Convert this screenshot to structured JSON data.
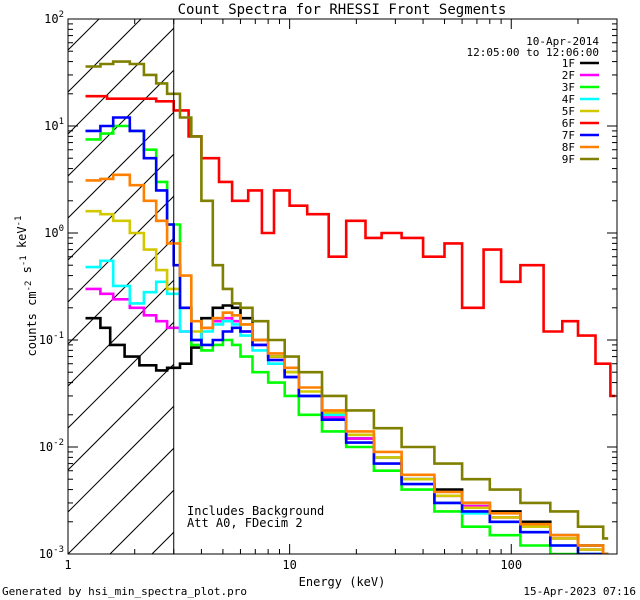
{
  "chart_data": {
    "type": "line",
    "title": "Count Spectra for RHESSI Front Segments",
    "xlabel": "Energy (keV)",
    "ylabel": "counts cm-2 s-1 keV-1",
    "xscale": "log",
    "yscale": "log",
    "xlim": [
      1,
      300
    ],
    "ylim": [
      0.001,
      100
    ],
    "x_tick_labels": [
      "1",
      "10",
      "100"
    ],
    "y_tick_labels": [
      "10-3",
      "10-2",
      "10-1",
      "100",
      "101",
      "102"
    ],
    "shaded_region": {
      "x_from": 1,
      "x_to": 3,
      "pattern": "diagonal-hatch"
    },
    "legend": {
      "date": "10-Apr-2014",
      "time_range": "12:05:00 to 12:06:00",
      "position": "top-right"
    },
    "annotation": [
      "Includes Background",
      "Att A0, FDecim 2"
    ],
    "series": [
      {
        "name": "1F",
        "color": "#000000",
        "x": [
          1.2,
          1.4,
          1.55,
          1.8,
          2.1,
          2.5,
          2.8,
          3.2,
          3.6,
          4.0,
          4.5,
          5.0,
          5.5,
          6.0,
          6.8,
          8.0,
          9.5,
          11,
          14,
          18,
          24,
          32,
          45,
          60,
          80,
          110,
          150,
          200,
          260
        ],
        "y": [
          0.16,
          0.13,
          0.09,
          0.07,
          0.058,
          0.052,
          0.055,
          0.06,
          0.085,
          0.16,
          0.2,
          0.21,
          0.2,
          0.16,
          0.1,
          0.07,
          0.05,
          0.03,
          0.02,
          0.012,
          0.008,
          0.005,
          0.004,
          0.003,
          0.0025,
          0.002,
          0.0015,
          0.0012,
          0.001
        ]
      },
      {
        "name": "2F",
        "color": "#ff00ff",
        "x": [
          1.2,
          1.4,
          1.6,
          1.9,
          2.2,
          2.5,
          2.8,
          3.2,
          3.6,
          4.0,
          4.5,
          5.0,
          5.5,
          6.0,
          6.8,
          8.0,
          9.5,
          11,
          14,
          18,
          24,
          32,
          45,
          60,
          80,
          110,
          150,
          200,
          260
        ],
        "y": [
          0.3,
          0.27,
          0.24,
          0.2,
          0.17,
          0.15,
          0.13,
          0.12,
          0.1,
          0.13,
          0.15,
          0.16,
          0.15,
          0.12,
          0.09,
          0.065,
          0.045,
          0.03,
          0.019,
          0.012,
          0.008,
          0.005,
          0.0035,
          0.0028,
          0.0022,
          0.0018,
          0.0014,
          0.0011,
          0.001
        ]
      },
      {
        "name": "3F",
        "color": "#00ff00",
        "x": [
          1.2,
          1.4,
          1.6,
          1.9,
          2.2,
          2.5,
          2.8,
          3.2,
          3.6,
          4.0,
          4.5,
          5.0,
          5.5,
          6.0,
          6.8,
          8.0,
          9.5,
          11,
          14,
          18,
          24,
          32,
          45,
          60,
          80,
          110,
          150,
          200,
          260
        ],
        "y": [
          7.5,
          8.5,
          10,
          9,
          6,
          3,
          1.2,
          0.2,
          0.09,
          0.08,
          0.09,
          0.1,
          0.09,
          0.07,
          0.05,
          0.04,
          0.03,
          0.02,
          0.014,
          0.01,
          0.006,
          0.004,
          0.0025,
          0.0018,
          0.0015,
          0.0012,
          0.001,
          0.001,
          0.001
        ]
      },
      {
        "name": "4F",
        "color": "#00ffff",
        "x": [
          1.2,
          1.4,
          1.6,
          1.9,
          2.2,
          2.5,
          2.8,
          3.2,
          3.6,
          4.0,
          4.5,
          5.0,
          5.5,
          6.0,
          6.8,
          8.0,
          9.5,
          11,
          14,
          18,
          24,
          32,
          45,
          60,
          80,
          110,
          150,
          200,
          260
        ],
        "y": [
          0.48,
          0.55,
          0.32,
          0.22,
          0.28,
          0.35,
          0.27,
          0.12,
          0.1,
          0.12,
          0.14,
          0.15,
          0.14,
          0.11,
          0.08,
          0.06,
          0.045,
          0.03,
          0.02,
          0.013,
          0.008,
          0.005,
          0.003,
          0.0024,
          0.002,
          0.0016,
          0.0012,
          0.001,
          0.001
        ]
      },
      {
        "name": "5F",
        "color": "#d2c800",
        "x": [
          1.2,
          1.4,
          1.6,
          1.9,
          2.2,
          2.5,
          2.8,
          3.2,
          3.6,
          4.0,
          4.5,
          5.0,
          5.5,
          6.0,
          6.8,
          8.0,
          9.5,
          11,
          14,
          18,
          24,
          32,
          45,
          60,
          80,
          110,
          150,
          200,
          260
        ],
        "y": [
          1.6,
          1.5,
          1.3,
          1.0,
          0.7,
          0.45,
          0.3,
          0.2,
          0.12,
          0.13,
          0.16,
          0.18,
          0.17,
          0.14,
          0.1,
          0.07,
          0.05,
          0.033,
          0.021,
          0.013,
          0.008,
          0.005,
          0.0035,
          0.0027,
          0.0022,
          0.0018,
          0.0014,
          0.0011,
          0.001
        ]
      },
      {
        "name": "6F",
        "color": "#ff0000",
        "x": [
          1.2,
          1.5,
          1.9,
          2.5,
          3.0,
          3.5,
          4.0,
          4.8,
          5.5,
          6.5,
          7.5,
          8.5,
          10,
          12,
          15,
          18,
          22,
          26,
          32,
          40,
          50,
          60,
          75,
          90,
          110,
          140,
          170,
          200,
          240,
          280
        ],
        "y": [
          19,
          18,
          18,
          17,
          14,
          8,
          5,
          3,
          2.0,
          2.5,
          1.0,
          2.5,
          1.8,
          1.5,
          0.6,
          1.3,
          0.9,
          1.0,
          0.9,
          0.6,
          0.8,
          0.2,
          0.7,
          0.35,
          0.5,
          0.12,
          0.15,
          0.11,
          0.06,
          0.03
        ]
      },
      {
        "name": "7F",
        "color": "#0000ff",
        "x": [
          1.2,
          1.4,
          1.6,
          1.9,
          2.2,
          2.5,
          2.8,
          3.0,
          3.2,
          3.6,
          4.0,
          4.5,
          5.0,
          5.5,
          6.0,
          6.8,
          8.0,
          9.5,
          11,
          14,
          18,
          24,
          32,
          45,
          60,
          80,
          110,
          150,
          200,
          260
        ],
        "y": [
          9,
          10,
          12,
          9,
          5,
          2.5,
          1.2,
          0.5,
          0.2,
          0.1,
          0.09,
          0.1,
          0.12,
          0.13,
          0.12,
          0.09,
          0.065,
          0.045,
          0.03,
          0.018,
          0.011,
          0.007,
          0.0045,
          0.003,
          0.0025,
          0.002,
          0.0016,
          0.0012,
          0.001,
          0.001
        ]
      },
      {
        "name": "8F",
        "color": "#ff8000",
        "x": [
          1.2,
          1.4,
          1.6,
          1.9,
          2.2,
          2.5,
          2.8,
          3.2,
          3.6,
          4.0,
          4.5,
          5.0,
          5.5,
          6.0,
          6.8,
          8.0,
          9.5,
          11,
          14,
          18,
          24,
          32,
          45,
          60,
          80,
          110,
          150,
          200,
          260
        ],
        "y": [
          3.1,
          3.2,
          3.5,
          2.8,
          2.0,
          1.3,
          0.8,
          0.4,
          0.15,
          0.13,
          0.16,
          0.18,
          0.17,
          0.14,
          0.1,
          0.075,
          0.055,
          0.036,
          0.022,
          0.014,
          0.009,
          0.0055,
          0.0038,
          0.003,
          0.0024,
          0.0019,
          0.0015,
          0.0012,
          0.001
        ]
      },
      {
        "name": "9F",
        "color": "#808000",
        "x": [
          1.2,
          1.4,
          1.6,
          1.9,
          2.2,
          2.5,
          2.8,
          3.2,
          3.6,
          4.0,
          4.5,
          5.0,
          5.5,
          6.0,
          6.8,
          8.0,
          9.5,
          11,
          14,
          18,
          24,
          32,
          45,
          60,
          80,
          110,
          150,
          200,
          260
        ],
        "y": [
          36,
          38,
          40,
          38,
          30,
          25,
          20,
          12,
          8,
          2.0,
          0.5,
          0.3,
          0.22,
          0.2,
          0.15,
          0.1,
          0.07,
          0.05,
          0.03,
          0.022,
          0.015,
          0.01,
          0.007,
          0.005,
          0.004,
          0.003,
          0.0025,
          0.0018,
          0.0014
        ]
      }
    ]
  },
  "footer": {
    "generated_by": "Generated by hsi_min_spectra_plot.pro",
    "timestamp": "15-Apr-2023 07:16"
  }
}
